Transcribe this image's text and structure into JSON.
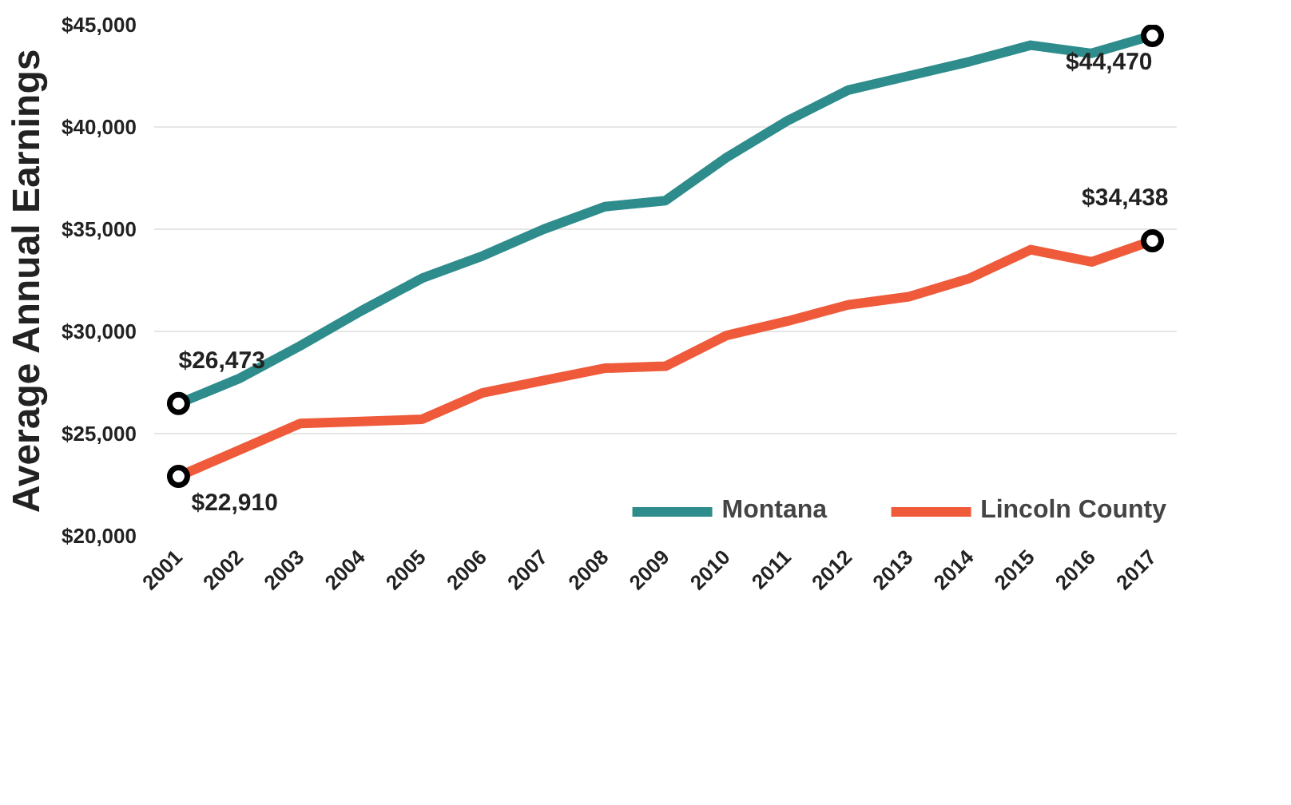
{
  "chart_data": {
    "type": "line",
    "ylabel": "Average Annual Earnings",
    "x": [
      2001,
      2002,
      2003,
      2004,
      2005,
      2006,
      2007,
      2008,
      2009,
      2010,
      2011,
      2012,
      2013,
      2014,
      2015,
      2016,
      2017
    ],
    "series": [
      {
        "name": "Montana",
        "color": "#2e8c8c",
        "values": [
          26473,
          27700,
          29300,
          31000,
          32600,
          33700,
          35000,
          36100,
          36400,
          38500,
          40300,
          41800,
          42500,
          43200,
          44000,
          43600,
          44470
        ],
        "value_labels": [
          "$26,473",
          null,
          null,
          null,
          null,
          null,
          null,
          null,
          null,
          null,
          null,
          null,
          null,
          null,
          null,
          null,
          "$44,470"
        ]
      },
      {
        "name": "Lincoln County",
        "color": "#ee5a3a",
        "values": [
          22910,
          24200,
          25500,
          25600,
          25700,
          27000,
          27600,
          28200,
          28300,
          29800,
          30500,
          31300,
          31700,
          32600,
          34000,
          33400,
          34438
        ],
        "value_labels": [
          "$22,910",
          null,
          null,
          null,
          null,
          null,
          null,
          null,
          null,
          null,
          null,
          null,
          null,
          null,
          null,
          null,
          "$34,438"
        ]
      }
    ],
    "xlim": [
      2000.6,
      2017.4
    ],
    "xticks": [
      2001,
      2002,
      2003,
      2004,
      2005,
      2006,
      2007,
      2008,
      2009,
      2010,
      2011,
      2012,
      2013,
      2014,
      2015,
      2016,
      2017
    ],
    "ylim": [
      20000,
      45000
    ],
    "yticks": [
      {
        "value": 20000,
        "label": "$20,000"
      },
      {
        "value": 25000,
        "label": "$25,000"
      },
      {
        "value": 30000,
        "label": "$30,000"
      },
      {
        "value": 35000,
        "label": "$35,000"
      },
      {
        "value": 40000,
        "label": "$40,000"
      },
      {
        "value": 45000,
        "label": "$45,000"
      }
    ],
    "grid": "y",
    "legend": "bottom right",
    "line_style": "solid"
  }
}
